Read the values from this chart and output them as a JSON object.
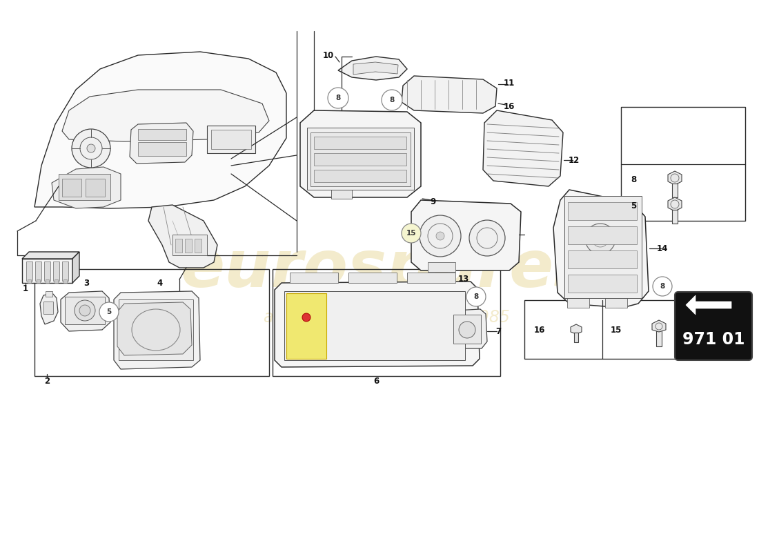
{
  "bg_color": "#ffffff",
  "lc": "#2a2a2a",
  "light_fill": "#f2f2f2",
  "mid_fill": "#e0e0e0",
  "dark_fill": "#c8c8c8",
  "yellow_fill": "#f0e870",
  "callout_fill": "#f5f5d0",
  "callout_ec": "#888888",
  "badge_bg": "#111111",
  "badge_fg": "#ffffff",
  "watermark_color": "#d4b84a",
  "wm_alpha": 0.28,
  "figsize": [
    11.0,
    8.0
  ],
  "dpi": 100
}
